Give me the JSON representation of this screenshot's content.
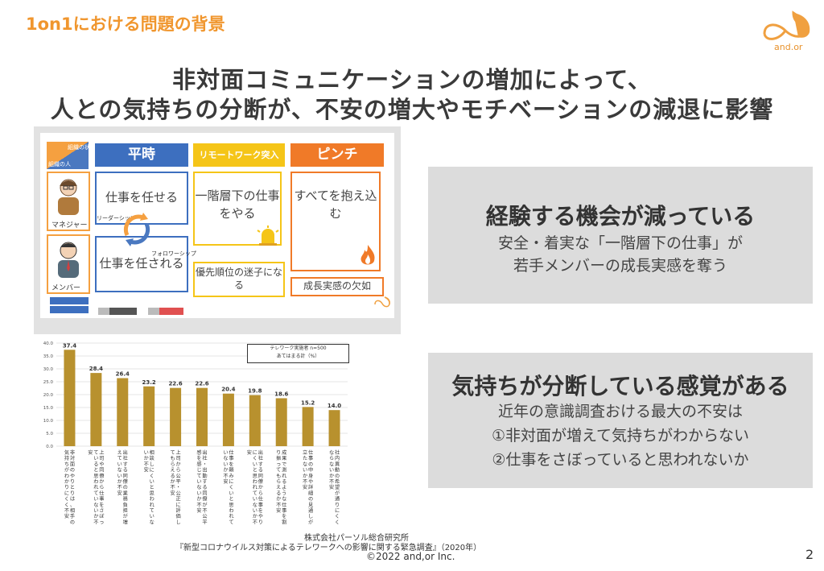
{
  "header": {
    "section_title": "1on1における問題の背景",
    "logo_text": "and.or",
    "headline_1": "非対面コミュニケーションの増加によって、",
    "headline_2": "人との気持ちの分断が、不安の増大やモチベーションの減退に影響"
  },
  "slide": {
    "corner_top": "組織の状態",
    "corner_bottom": "組織の人",
    "manager_label": "マネジャー",
    "member_label": "メンバー",
    "columns": [
      {
        "header": "平時",
        "body": "仕事を任せる",
        "body2": "仕事を任される",
        "color": "#3d6fbf"
      },
      {
        "header": "リモートワーク突入",
        "body": "一階層下の仕事をやる",
        "footer": "優先順位の迷子になる",
        "color": "#f5c518"
      },
      {
        "header": "ピンチ",
        "body": "すべてを抱え込む",
        "footer": "成長実感の欠如",
        "color": "#f07a28"
      }
    ],
    "leadership_label": "リーダーシップ",
    "followership_label": "フォロワーシップ"
  },
  "panel1": {
    "title": "経験する機会が減っている",
    "line1": "安全・着実な「一階層下の仕事」が",
    "line2": "若手メンバーの成長実感を奪う"
  },
  "panel2": {
    "title": "気持ちが分断している感覚がある",
    "line1": "近年の意識調査おける最大の不安は",
    "line2": "①非対面が増えて気持ちがわからない",
    "line3": "②仕事をさぼっていると思われないか"
  },
  "chart_data": {
    "type": "bar",
    "legend": [
      "テレワーク実施者 n=500",
      "あてはまる計（%）"
    ],
    "ylim": [
      0,
      40
    ],
    "yticks": [
      "0.0",
      "5.0",
      "10.0",
      "15.0",
      "20.0",
      "25.0",
      "30.0",
      "35.0",
      "40.0"
    ],
    "bar_color": "#b8912e",
    "categories": [
      "非対面のやりとりは、相手の気持ちがわかりにくく不安",
      "上司や同僚から仕事をさぼっていると思われていないか不安",
      "出社する同僚の業務負担が増えていないか不安",
      "相談しにくいと思われていないか不安",
      "上司から公平・公正に評価してもらえるか不安",
      "出社・出勤する同僚が不公平感を感じていないか不安",
      "仕事を頼みにくいと思われていないか不安",
      "出社する同僚から仕事をやりにくいと思われていないか不安",
      "成果で測れるような仕事を割り振ってもらえるか不安",
      "仕事の中身や詳細の見通しが立たないか不安",
      "社内異動の希望が通りにくくならないか不安"
    ],
    "values": [
      37.4,
      28.4,
      26.4,
      23.2,
      22.6,
      22.6,
      20.4,
      19.8,
      18.6,
      15.2,
      14.0
    ],
    "value_labels": [
      "37.4",
      "28.4",
      "26.4",
      "23.2",
      "22.6",
      "22.6",
      "20.4",
      "19.8",
      "18.6",
      "15.2",
      "14.0"
    ]
  },
  "footer": {
    "source_1": "株式会社パーソル総合研究所",
    "source_2": "『新型コロナウイルス対策によるテレワークへの影響に関する緊急調査』（2020年）",
    "copyright": "©2022 and,or Inc.",
    "page": "2"
  }
}
